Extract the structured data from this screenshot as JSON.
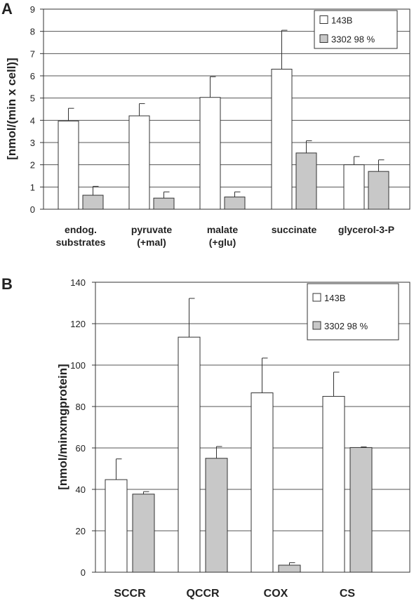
{
  "colors": {
    "s1": "#ffffff",
    "s2": "#c8c8c8",
    "stroke": "#333333",
    "grid": "#555555"
  },
  "chart_data": [
    {
      "panel": "A",
      "type": "bar",
      "ylabel": "[nmol/(min x cell)]",
      "ylim": [
        0,
        9
      ],
      "yticks": [
        0,
        1,
        2,
        3,
        4,
        5,
        6,
        7,
        8,
        9
      ],
      "grid": true,
      "legend": "top-right",
      "categories": [
        [
          "endog.",
          "substrates"
        ],
        [
          "pyruvate",
          "(+mal)"
        ],
        [
          "malate",
          "(+glu)"
        ],
        [
          "succinate"
        ],
        [
          "glycerol-3-P"
        ]
      ],
      "series": [
        {
          "name": "143B",
          "values": [
            3.97,
            4.2,
            5.03,
            6.3,
            2.0
          ],
          "errors": [
            0.57,
            0.55,
            0.93,
            1.75,
            0.37
          ]
        },
        {
          "name": "3302 98 %",
          "values": [
            0.63,
            0.5,
            0.55,
            2.53,
            1.7
          ],
          "errors": [
            0.4,
            0.28,
            0.23,
            0.55,
            0.52
          ]
        }
      ]
    },
    {
      "panel": "B",
      "type": "bar",
      "ylabel": "[nmol/minxmgprotein]",
      "ylim": [
        0,
        140
      ],
      "yticks": [
        0,
        20,
        40,
        60,
        80,
        100,
        120,
        140
      ],
      "grid": true,
      "legend": "top-right",
      "categories": [
        [
          "SCCR"
        ],
        [
          "QCCR"
        ],
        [
          "COX"
        ],
        [
          "CS"
        ]
      ],
      "series": [
        {
          "name": "143B",
          "values": [
            44.7,
            113.5,
            86.6,
            84.9
          ],
          "errors": [
            10.0,
            18.7,
            16.8,
            11.7
          ]
        },
        {
          "name": "3302 98 %",
          "values": [
            37.7,
            55.0,
            3.4,
            60.2
          ],
          "errors": [
            1.2,
            5.7,
            1.2,
            0.3
          ]
        }
      ]
    }
  ]
}
